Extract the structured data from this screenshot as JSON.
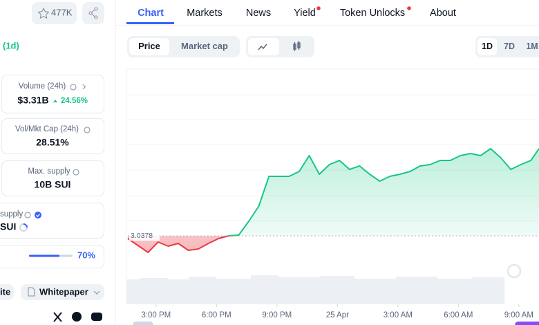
{
  "header": {
    "watchlist_count": "477K"
  },
  "tabs": [
    "Chart",
    "Markets",
    "News",
    "Yield",
    "Token Unlocks",
    "About"
  ],
  "left": {
    "change_period": "(1d)",
    "volume": {
      "label": "Volume (24h)",
      "value": "$3.31B",
      "change": "24.56%"
    },
    "vol_mkt_cap": {
      "label": "Vol/Mkt Cap (24h)",
      "value": "28.51%"
    },
    "max_supply": {
      "label": "Max. supply",
      "value": "10B SUI"
    },
    "supply": {
      "label": "supply",
      "value": "SUI"
    },
    "progress": {
      "value": 70,
      "label": "70%"
    },
    "links": [
      "ite",
      "Whitepaper"
    ]
  },
  "chart_toggle": [
    "Price",
    "Market cap"
  ],
  "ranges": [
    "1D",
    "7D",
    "1M"
  ],
  "chart_data": {
    "type": "line",
    "x": [
      13.6,
      14.1,
      14.6,
      15.1,
      15.6,
      16.1,
      16.6,
      17.1,
      17.6,
      18.1,
      18.6,
      19.1,
      19.6,
      20.1,
      20.6,
      21.1,
      21.6,
      22.1,
      22.6,
      23.1,
      23.6,
      24.1,
      24.6,
      25.1,
      25.6,
      26.1,
      26.6,
      27.1,
      27.6,
      28.1,
      28.6,
      29.1,
      29.6,
      30.1,
      30.6,
      31.1,
      31.6,
      32.1,
      32.6,
      33.1,
      33.6,
      34.0
    ],
    "values": [
      3.03,
      3.01,
      2.99,
      3.02,
      3.008,
      3.016,
      2.996,
      3.0,
      3.016,
      3.03,
      3.038,
      3.04,
      3.08,
      3.124,
      3.21,
      3.21,
      3.21,
      3.224,
      3.27,
      3.216,
      3.244,
      3.256,
      3.23,
      3.24,
      3.216,
      3.196,
      3.21,
      3.216,
      3.224,
      3.24,
      3.244,
      3.256,
      3.256,
      3.27,
      3.276,
      3.27,
      3.29,
      3.264,
      3.23,
      3.244,
      3.256,
      3.29
    ],
    "baseline": 3.0378,
    "up_color": "#16c784",
    "down_color": "#ea3943",
    "xlim": [
      13.6,
      34.0
    ],
    "ylim": [
      2.92,
      3.52
    ],
    "xticks": [
      {
        "value": 15,
        "label": "3:00 PM"
      },
      {
        "value": 18,
        "label": "6:00 PM"
      },
      {
        "value": 21,
        "label": "9:00 PM"
      },
      {
        "value": 24,
        "label": "25 Apr"
      },
      {
        "value": 27,
        "label": "3:00 AM"
      },
      {
        "value": 30,
        "label": "6:00 AM"
      },
      {
        "value": 33,
        "label": "9:00 AM"
      }
    ]
  }
}
